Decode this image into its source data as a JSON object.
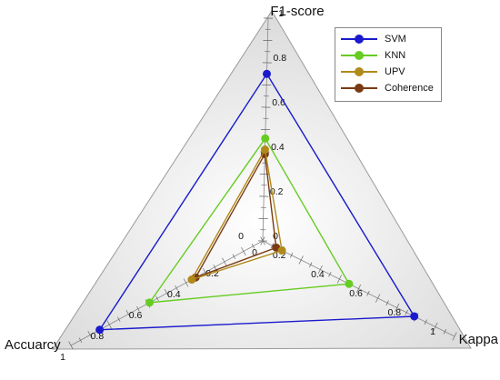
{
  "chart_data": {
    "type": "radar",
    "axes": [
      {
        "label": "F1-score",
        "ticks": [
          "0",
          "0.2",
          "0.4",
          "0.6",
          "0.8",
          "1"
        ]
      },
      {
        "label": "Kappa",
        "ticks": [
          "0",
          "0.2",
          "0.4",
          "0.6",
          "0.8",
          "1"
        ]
      },
      {
        "label": "Accuarcy",
        "ticks": [
          "0",
          "0.2",
          "0.4",
          "0.6",
          "0.8",
          "1"
        ]
      }
    ],
    "range": [
      0,
      1
    ],
    "grid": false,
    "legend_position": "top-right",
    "series": [
      {
        "name": "SVM",
        "color": "#1a1acc",
        "values": [
          0.75,
          0.79,
          0.85
        ]
      },
      {
        "name": "KNN",
        "color": "#66cc22",
        "values": [
          0.46,
          0.45,
          0.59
        ]
      },
      {
        "name": "UPV",
        "color": "#b08a1a",
        "values": [
          0.41,
          0.1,
          0.37
        ]
      },
      {
        "name": "Coherence",
        "color": "#7a3a12",
        "values": [
          0.39,
          0.07,
          0.35
        ]
      }
    ]
  }
}
